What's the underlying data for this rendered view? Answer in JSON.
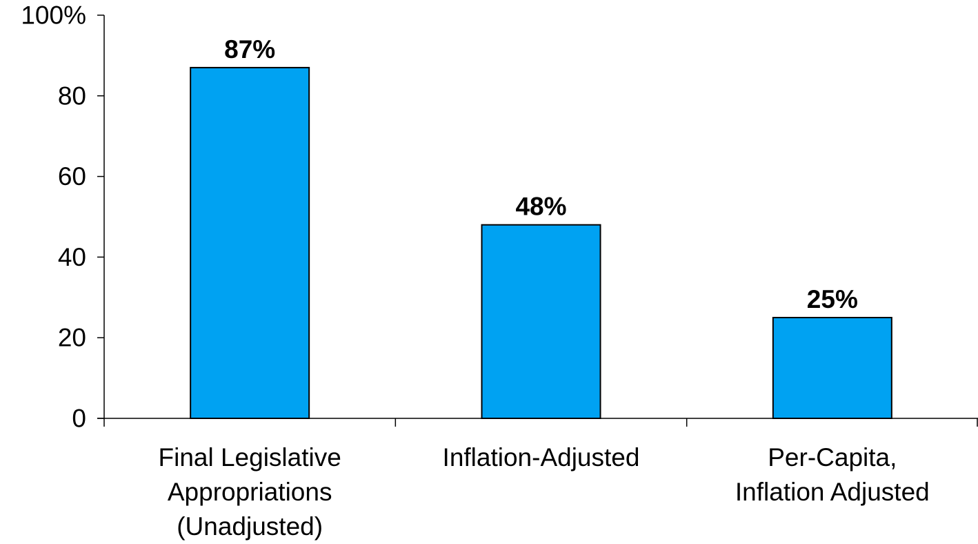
{
  "chart_data": {
    "type": "bar",
    "title": "",
    "xlabel": "",
    "ylabel": "",
    "categories": [
      [
        "Final Legislative",
        "Appropriations",
        "(Unadjusted)"
      ],
      [
        "Inflation-Adjusted"
      ],
      [
        "Per-Capita,",
        "Inflation Adjusted"
      ]
    ],
    "values": [
      87,
      48,
      25
    ],
    "data_labels": [
      "87%",
      "48%",
      "25%"
    ],
    "ylim": [
      0,
      100
    ],
    "yticks": [
      0,
      20,
      40,
      60,
      80,
      100
    ],
    "ytick_labels": [
      "0",
      "20",
      "40",
      "60",
      "80",
      "100%"
    ],
    "grid": false,
    "legend": "none",
    "colors": {
      "bar": "#00a2f2",
      "bar_outline": "#000000",
      "axis": "#000000"
    }
  }
}
